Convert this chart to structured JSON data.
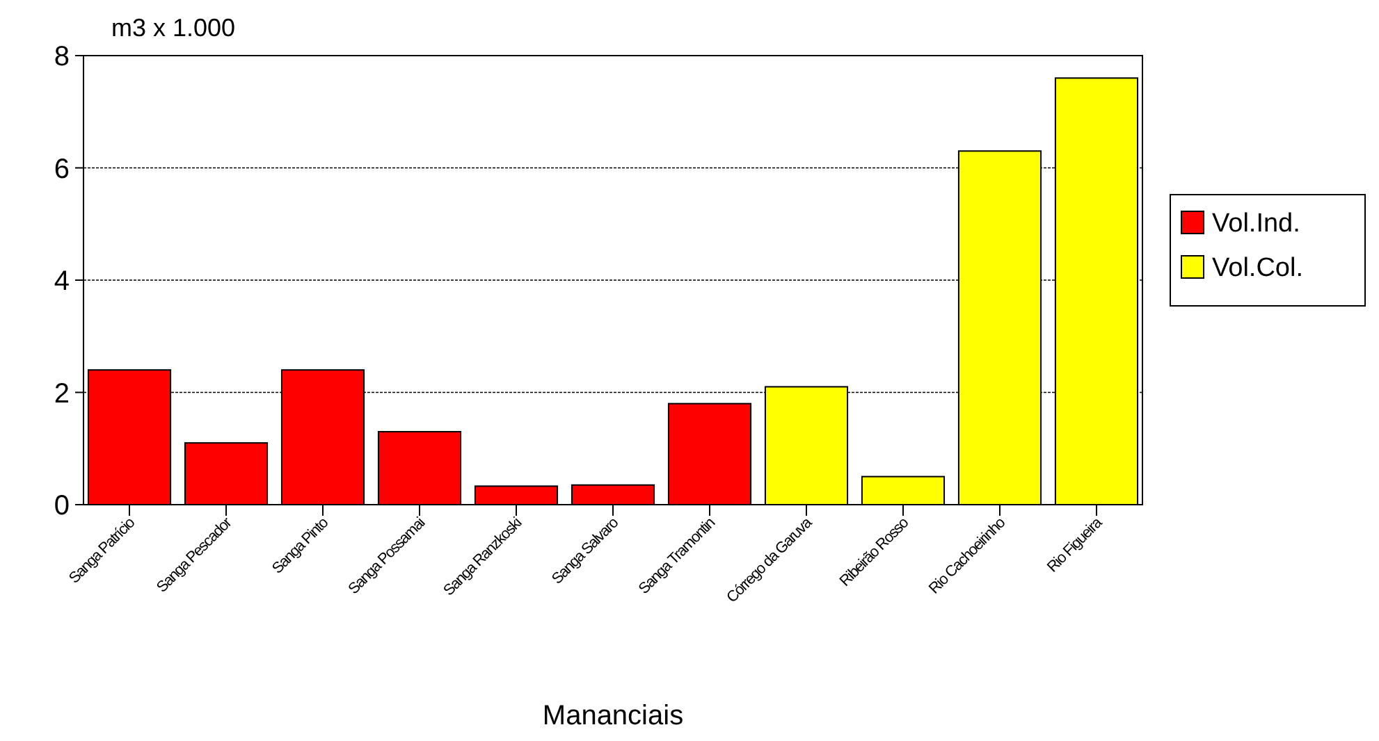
{
  "chart_data": {
    "type": "bar",
    "ylabel": "m3 x 1.000",
    "xlabel": "Mananciais",
    "categories": [
      "Sanga Patrício",
      "Sanga Pescador",
      "Sanga Pinto",
      "Sanga Possamai",
      "Sanga Ranzkoski",
      "Sanga Salvaro",
      "Sanga Tramontin",
      "Córrego da Garuva",
      "Ribeirão Rosso",
      "Rio Cachoeirinho",
      "Rio Figueira"
    ],
    "series": [
      {
        "name": "Vol.Ind.",
        "color": "#ff0000",
        "values": [
          2.4,
          1.1,
          2.4,
          1.3,
          0.33,
          0.35,
          1.8,
          null,
          null,
          null,
          null
        ]
      },
      {
        "name": "Vol.Col.",
        "color": "#ffff00",
        "values": [
          null,
          null,
          null,
          null,
          null,
          null,
          null,
          2.1,
          0.5,
          6.3,
          7.6
        ]
      }
    ],
    "ylim": [
      0,
      8
    ],
    "yticks": [
      0,
      2,
      4,
      6,
      8
    ],
    "grid": "y",
    "legend": "right"
  }
}
